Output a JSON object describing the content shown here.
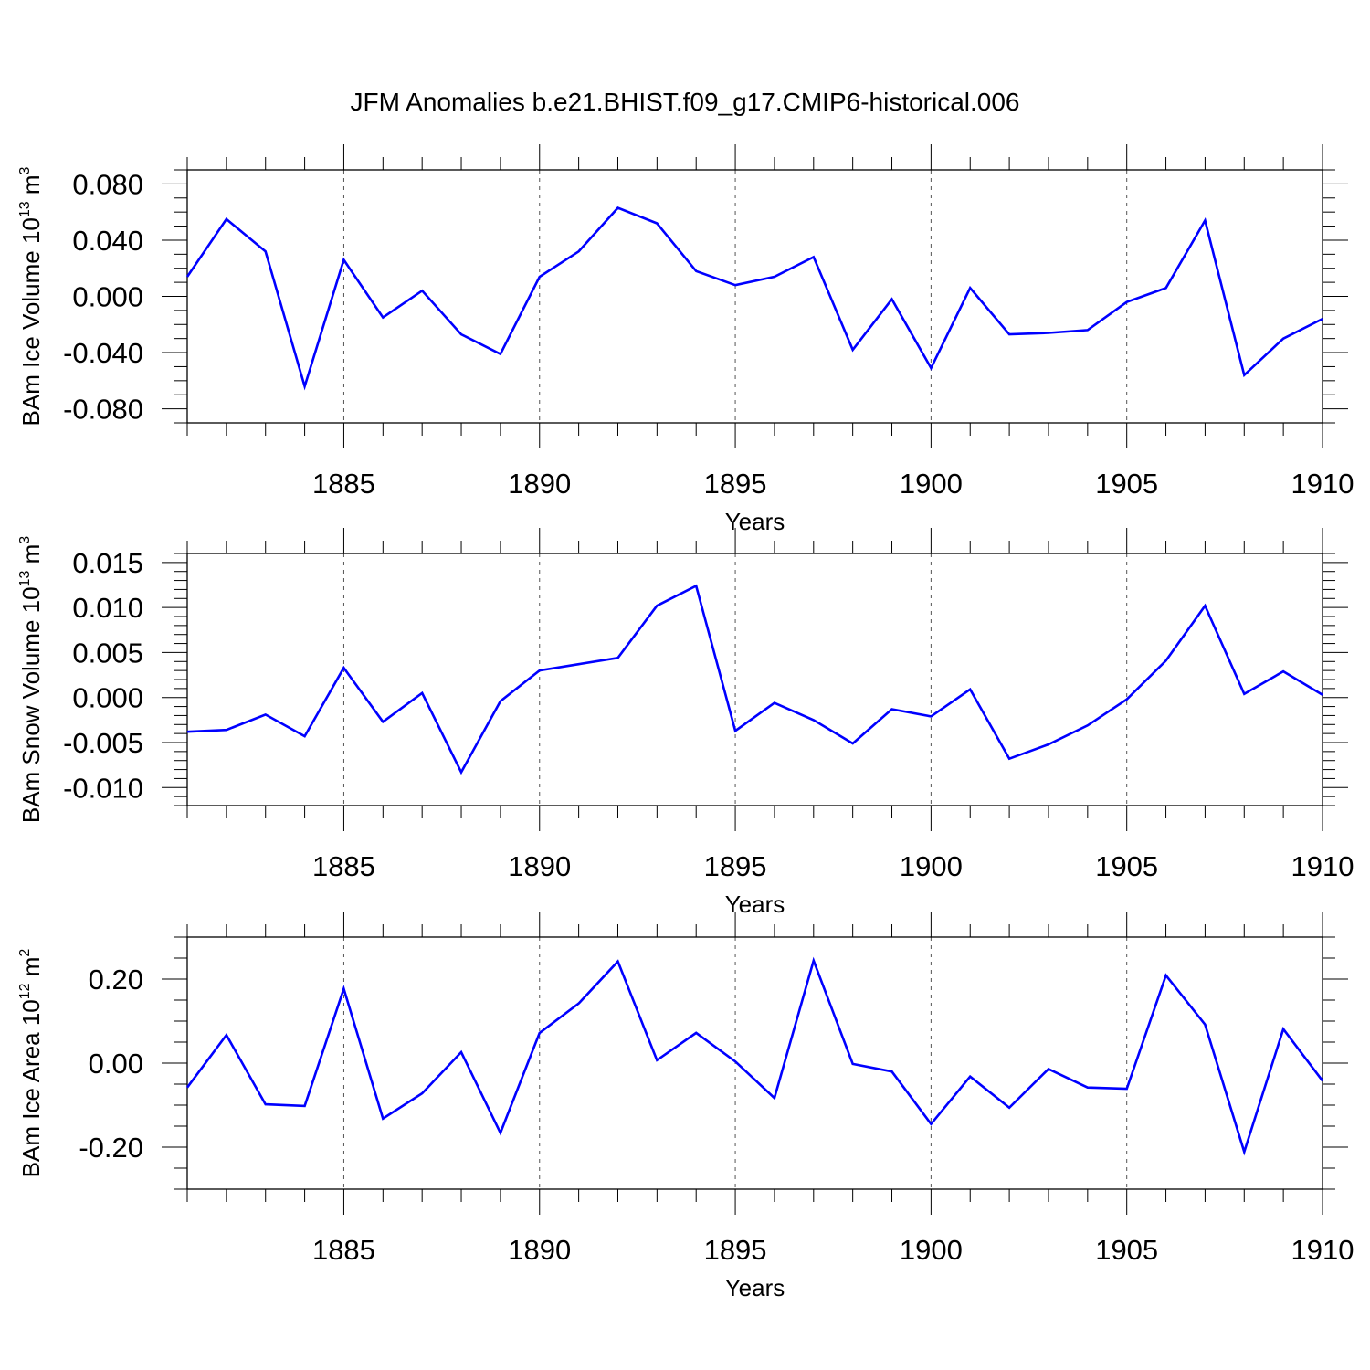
{
  "title": "JFM Anomalies b.e21.BHIST.f09_g17.CMIP6-historical.006",
  "chart_data": [
    {
      "type": "line",
      "title": "JFM Anomalies b.e21.BHIST.f09_g17.CMIP6-historical.006",
      "xlabel": "Years",
      "ylabel": "BAm Ice Volume 10",
      "ylabel_exp": "13",
      "ylabel_unit": " m",
      "ylabel_unit_exp": "3",
      "xlim": [
        1881,
        1910
      ],
      "ylim": [
        -0.09,
        0.09
      ],
      "xticks": [
        1885,
        1890,
        1895,
        1900,
        1905,
        1910
      ],
      "yticks": [
        -0.08,
        -0.04,
        0.0,
        0.04,
        0.08
      ],
      "ytick_labels": [
        "-0.080",
        "-0.040",
        "0.000",
        "0.040",
        "0.080"
      ],
      "yminor_step": 0.01,
      "grid": "dashed vertical lines at x ticks",
      "line_color": "#0000ff",
      "x": [
        1881,
        1882,
        1883,
        1884,
        1885,
        1886,
        1887,
        1888,
        1889,
        1890,
        1891,
        1892,
        1893,
        1894,
        1895,
        1896,
        1897,
        1898,
        1899,
        1900,
        1901,
        1902,
        1903,
        1904,
        1905,
        1906,
        1907,
        1908,
        1909,
        1910
      ],
      "values": [
        0.014,
        0.055,
        0.032,
        -0.064,
        0.026,
        -0.015,
        0.004,
        -0.027,
        -0.041,
        0.014,
        0.032,
        0.063,
        0.052,
        0.018,
        0.008,
        0.014,
        0.028,
        -0.038,
        -0.002,
        -0.051,
        0.006,
        -0.027,
        -0.026,
        -0.024,
        -0.004,
        0.006,
        0.054,
        -0.056,
        -0.03,
        -0.016
      ]
    },
    {
      "type": "line",
      "xlabel": "Years",
      "ylabel": "BAm Snow Volume 10",
      "ylabel_exp": "13",
      "ylabel_unit": " m",
      "ylabel_unit_exp": "3",
      "xlim": [
        1881,
        1910
      ],
      "ylim": [
        -0.012,
        0.016
      ],
      "xticks": [
        1885,
        1890,
        1895,
        1900,
        1905,
        1910
      ],
      "yticks": [
        -0.01,
        -0.005,
        0.0,
        0.005,
        0.01,
        0.015
      ],
      "ytick_labels": [
        "-0.010",
        "-0.005",
        "0.000",
        "0.005",
        "0.010",
        "0.015"
      ],
      "yminor_step": 0.001,
      "grid": "dashed vertical lines at x ticks",
      "line_color": "#0000ff",
      "x": [
        1881,
        1882,
        1883,
        1884,
        1885,
        1886,
        1887,
        1888,
        1889,
        1890,
        1891,
        1892,
        1893,
        1894,
        1895,
        1896,
        1897,
        1898,
        1899,
        1900,
        1901,
        1902,
        1903,
        1904,
        1905,
        1906,
        1907,
        1908,
        1909,
        1910
      ],
      "values": [
        -0.0038,
        -0.0036,
        -0.0019,
        -0.0043,
        0.0033,
        -0.0027,
        0.0005,
        -0.0083,
        -0.0004,
        0.003,
        0.0037,
        0.0044,
        0.0102,
        0.0124,
        -0.0037,
        -0.0006,
        -0.0025,
        -0.0051,
        -0.0013,
        -0.0021,
        0.0009,
        -0.0068,
        -0.0052,
        -0.0031,
        -0.0002,
        0.0041,
        0.0102,
        0.0004,
        0.0029,
        0.0003
      ]
    },
    {
      "type": "line",
      "xlabel": "Years",
      "ylabel": "BAm Ice Area 10",
      "ylabel_exp": "12",
      "ylabel_unit": " m",
      "ylabel_unit_exp": "2",
      "xlim": [
        1881,
        1910
      ],
      "ylim": [
        -0.3,
        0.3
      ],
      "xticks": [
        1885,
        1890,
        1895,
        1900,
        1905,
        1910
      ],
      "yticks": [
        -0.2,
        0.0,
        0.2
      ],
      "ytick_labels": [
        "-0.20",
        "0.00",
        "0.20"
      ],
      "yminor_step": 0.05,
      "grid": "dashed vertical lines at x ticks",
      "line_color": "#0000ff",
      "x": [
        1881,
        1882,
        1883,
        1884,
        1885,
        1886,
        1887,
        1888,
        1889,
        1890,
        1891,
        1892,
        1893,
        1894,
        1895,
        1896,
        1897,
        1898,
        1899,
        1900,
        1901,
        1902,
        1903,
        1904,
        1905,
        1906,
        1907,
        1908,
        1909,
        1910
      ],
      "values": [
        -0.058,
        0.067,
        -0.098,
        -0.102,
        0.177,
        -0.132,
        -0.072,
        0.026,
        -0.166,
        0.072,
        0.142,
        0.242,
        0.007,
        0.072,
        0.004,
        -0.083,
        0.244,
        -0.002,
        -0.02,
        -0.145,
        -0.032,
        -0.106,
        -0.014,
        -0.058,
        -0.061,
        0.209,
        0.092,
        -0.211,
        0.081,
        -0.042
      ]
    }
  ]
}
